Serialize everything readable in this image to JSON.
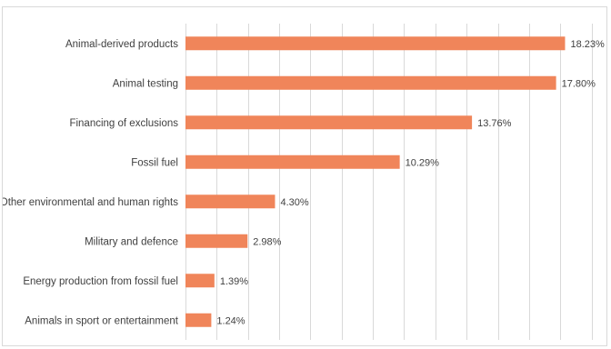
{
  "chart_data": {
    "type": "bar",
    "orientation": "horizontal",
    "categories": [
      "Animal-derived products",
      "Animal testing",
      "Financing of exclusions",
      "Fossil fuel",
      "Other environmental and human rights",
      "Military and defence",
      "Energy production from fossil fuel",
      "Animals in sport or entertainment"
    ],
    "values": [
      18.23,
      17.8,
      13.76,
      10.29,
      4.3,
      2.98,
      1.39,
      1.24
    ],
    "value_labels": [
      "18.23%",
      "17.80%",
      "13.76%",
      "10.29%",
      "4.30%",
      "2.98%",
      "1.39%",
      "1.24%"
    ],
    "title": "",
    "xlabel": "",
    "ylabel": "",
    "xlim": [
      0,
      20
    ],
    "gridlines": true,
    "legend": "none",
    "bar_color": "#f0855a"
  }
}
